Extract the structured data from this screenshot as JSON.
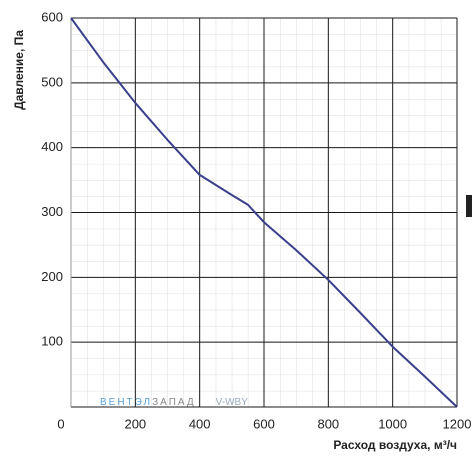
{
  "chart_data": {
    "type": "line",
    "x_label": "Расход воздуха, м³/ч",
    "y_label": "Давление, Па",
    "x": [
      0,
      100,
      200,
      300,
      400,
      500,
      550,
      600,
      700,
      800,
      900,
      1000,
      1100,
      1200
    ],
    "series": [
      {
        "color": "#3a3f8c",
        "values": [
          600,
          532,
          469,
          412,
          358,
          327,
          312,
          285,
          242,
          196,
          145,
          93,
          47,
          0
        ]
      }
    ],
    "xlim": [
      0,
      1200
    ],
    "ylim": [
      0,
      600
    ],
    "xticks": [
      0,
      200,
      400,
      600,
      800,
      1000,
      1200
    ],
    "yticks": [
      0,
      100,
      200,
      300,
      400,
      500,
      600
    ],
    "grid": true,
    "watermark": [
      "ВЕНТЭЛ",
      "ЗАПАД",
      "V-WBY"
    ]
  }
}
